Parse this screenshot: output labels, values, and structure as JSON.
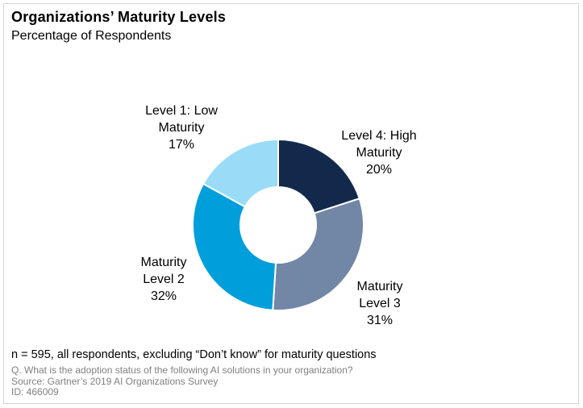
{
  "header": {
    "title": "Organizations’ Maturity Levels",
    "subtitle": "Percentage of Respondents"
  },
  "chart_data": {
    "type": "pie",
    "subtype": "donut",
    "title": "Organizations’ Maturity Levels",
    "subtitle": "Percentage of Respondents",
    "unit": "%",
    "total": 100,
    "start_angle_deg": 0,
    "direction": "clockwise",
    "inner_radius_ratio": 0.44,
    "legend_position": "callout-labels-around-donut",
    "segments": [
      {
        "name": "Level 4: High Maturity",
        "label_lines": [
          "Level 4: High",
          "Maturity"
        ],
        "value": 20,
        "color": "#13294b"
      },
      {
        "name": "Maturity Level 3",
        "label_lines": [
          "Maturity",
          "Level 3"
        ],
        "value": 31,
        "color": "#7286a6"
      },
      {
        "name": "Maturity Level 2",
        "label_lines": [
          "Maturity",
          "Level 2"
        ],
        "value": 32,
        "color": "#009fdb"
      },
      {
        "name": "Level 1: Low Maturity",
        "label_lines": [
          "Level 1: Low",
          "Maturity"
        ],
        "value": 17,
        "color": "#9adcf8"
      }
    ]
  },
  "footer": {
    "sample_note": "n = 595, all respondents, excluding “Don’t know” for maturity questions",
    "question": "Q. What is the adoption status of the following AI solutions in your organization?",
    "source": "Source: Gartner’s 2019 AI Organizations Survey",
    "id": "ID: 466009"
  },
  "style": {
    "frame_border_color": "#d4d4d4",
    "segment_divider_color": "#ffffff",
    "footnote_gray": "#808080"
  }
}
